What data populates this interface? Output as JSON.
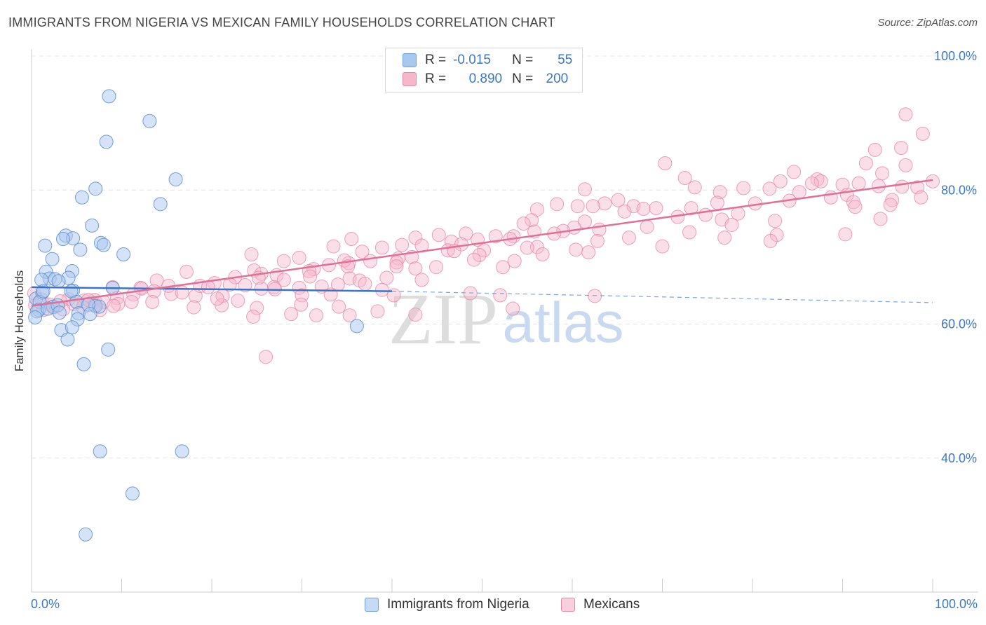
{
  "title": "IMMIGRANTS FROM NIGERIA VS MEXICAN FAMILY HOUSEHOLDS CORRELATION CHART",
  "source": "Source: ZipAtlas.com",
  "watermark": {
    "zip": "ZIP",
    "atlas": "atlas"
  },
  "legend": {
    "r_label": "R =",
    "n_label": "N =",
    "rows": [
      {
        "r": "-0.015",
        "n": "55",
        "color": "#a9c8ef",
        "border": "#6f9fd8"
      },
      {
        "r": "0.890",
        "n": "200",
        "color": "#f6b7cb",
        "border": "#e48aa8"
      }
    ]
  },
  "series_labels": {
    "nigeria": "Immigrants from Nigeria",
    "mexicans": "Mexicans"
  },
  "chart_data": {
    "type": "scatter",
    "title": "IMMIGRANTS FROM NIGERIA VS MEXICAN FAMILY HOUSEHOLDS CORRELATION CHART",
    "xlabel": "",
    "ylabel": "Family Households",
    "xlim": [
      0,
      100
    ],
    "ylim": [
      20,
      100
    ],
    "x_tick_labels": [
      "0.0%",
      "100.0%"
    ],
    "y_ticks": [
      40,
      60,
      80,
      100
    ],
    "y_tick_labels": [
      "40.0%",
      "60.0%",
      "80.0%",
      "100.0%"
    ],
    "grid": true,
    "series": [
      {
        "name": "Immigrants from Nigeria",
        "color": "#6f9fd8",
        "fill": "#a9c8ef",
        "trend": {
          "x0": 0,
          "y0": 65.5,
          "x1": 40,
          "y1": 64.9,
          "dashed_to_x": 100,
          "dashed_to_y": 63.2
        },
        "points": [
          [
            8.6,
            94.0
          ],
          [
            13.1,
            90.3
          ],
          [
            8.3,
            87.2
          ],
          [
            16.0,
            81.6
          ],
          [
            7.1,
            80.2
          ],
          [
            5.6,
            78.9
          ],
          [
            14.3,
            77.9
          ],
          [
            6.7,
            74.7
          ],
          [
            3.8,
            73.2
          ],
          [
            4.6,
            72.8
          ],
          [
            3.5,
            72.7
          ],
          [
            1.5,
            71.7
          ],
          [
            7.7,
            72.1
          ],
          [
            8.0,
            71.8
          ],
          [
            5.4,
            71.1
          ],
          [
            10.2,
            70.4
          ],
          [
            2.3,
            69.7
          ],
          [
            1.6,
            67.8
          ],
          [
            4.5,
            67.9
          ],
          [
            4.1,
            66.9
          ],
          [
            2.0,
            66.8
          ],
          [
            1.1,
            66.6
          ],
          [
            2.6,
            66.7
          ],
          [
            3.0,
            66.4
          ],
          [
            4.6,
            65.0
          ],
          [
            4.4,
            64.9
          ],
          [
            0.5,
            63.8
          ],
          [
            1.2,
            64.7
          ],
          [
            0.9,
            63.3
          ],
          [
            5.0,
            63.3
          ],
          [
            7.1,
            62.7
          ],
          [
            7.5,
            62.6
          ],
          [
            6.3,
            62.9
          ],
          [
            2.4,
            62.6
          ],
          [
            0.8,
            62.1
          ],
          [
            0.6,
            61.9
          ],
          [
            1.8,
            62.3
          ],
          [
            2.9,
            62.8
          ],
          [
            3.1,
            61.7
          ],
          [
            5.2,
            61.6
          ],
          [
            6.5,
            61.5
          ],
          [
            0.4,
            61.0
          ],
          [
            5.1,
            60.7
          ],
          [
            3.3,
            59.1
          ],
          [
            4.5,
            59.5
          ],
          [
            36.1,
            59.7
          ],
          [
            4.0,
            57.7
          ],
          [
            8.5,
            56.2
          ],
          [
            5.8,
            54.0
          ],
          [
            7.6,
            41.0
          ],
          [
            16.7,
            41.0
          ],
          [
            11.2,
            34.7
          ],
          [
            6.0,
            28.6
          ],
          [
            9.0,
            65.4
          ],
          [
            1.3,
            64.9
          ]
        ]
      },
      {
        "name": "Mexicans",
        "color": "#e07098",
        "fill": "#f6b7cb",
        "trend": {
          "x0": 0,
          "y0": 62.7,
          "x1": 100,
          "y1": 81.5
        },
        "points": [
          [
            97.0,
            91.3
          ],
          [
            98.9,
            88.4
          ],
          [
            93.6,
            86.0
          ],
          [
            96.5,
            86.3
          ],
          [
            92.6,
            84.0
          ],
          [
            70.3,
            84.0
          ],
          [
            97.0,
            83.7
          ],
          [
            84.6,
            82.7
          ],
          [
            94.4,
            82.5
          ],
          [
            72.5,
            81.8
          ],
          [
            87.2,
            81.6
          ],
          [
            87.6,
            81.3
          ],
          [
            100.0,
            81.3
          ],
          [
            91.8,
            81.0
          ],
          [
            73.6,
            80.4
          ],
          [
            90.0,
            80.8
          ],
          [
            94.0,
            80.6
          ],
          [
            86.6,
            81.0
          ],
          [
            81.9,
            80.2
          ],
          [
            83.1,
            81.3
          ],
          [
            96.6,
            80.5
          ],
          [
            98.3,
            80.4
          ],
          [
            61.4,
            80.1
          ],
          [
            79.0,
            80.3
          ],
          [
            85.2,
            79.7
          ],
          [
            76.4,
            79.7
          ],
          [
            90.5,
            79.3
          ],
          [
            88.7,
            78.9
          ],
          [
            98.7,
            78.9
          ],
          [
            65.1,
            78.5
          ],
          [
            84.1,
            78.4
          ],
          [
            95.5,
            78.5
          ],
          [
            80.3,
            78.0
          ],
          [
            76.1,
            78.1
          ],
          [
            91.2,
            78.2
          ],
          [
            66.8,
            77.6
          ],
          [
            69.3,
            77.3
          ],
          [
            73.2,
            77.3
          ],
          [
            95.3,
            77.8
          ],
          [
            91.4,
            77.5
          ],
          [
            56.1,
            77.1
          ],
          [
            63.6,
            78.0
          ],
          [
            58.3,
            77.9
          ],
          [
            60.6,
            77.6
          ],
          [
            65.8,
            76.8
          ],
          [
            67.9,
            77.2
          ],
          [
            62.3,
            77.6
          ],
          [
            78.4,
            76.5
          ],
          [
            82.5,
            75.4
          ],
          [
            61.4,
            75.3
          ],
          [
            71.7,
            76.0
          ],
          [
            74.8,
            76.3
          ],
          [
            76.6,
            75.6
          ],
          [
            94.2,
            75.7
          ],
          [
            55.5,
            75.5
          ],
          [
            54.6,
            75.0
          ],
          [
            60.2,
            74.4
          ],
          [
            63.0,
            74.1
          ],
          [
            68.3,
            74.5
          ],
          [
            77.7,
            74.8
          ],
          [
            59.0,
            73.9
          ],
          [
            58.0,
            73.5
          ],
          [
            53.5,
            73.1
          ],
          [
            48.2,
            73.5
          ],
          [
            45.2,
            73.3
          ],
          [
            51.5,
            73.1
          ],
          [
            55.8,
            73.8
          ],
          [
            73.0,
            73.7
          ],
          [
            66.3,
            72.9
          ],
          [
            82.7,
            73.3
          ],
          [
            82.0,
            72.4
          ],
          [
            90.3,
            73.4
          ],
          [
            76.9,
            72.9
          ],
          [
            35.5,
            72.7
          ],
          [
            42.6,
            72.9
          ],
          [
            53.1,
            72.7
          ],
          [
            62.8,
            72.4
          ],
          [
            49.5,
            72.6
          ],
          [
            46.6,
            72.3
          ],
          [
            43.3,
            71.7
          ],
          [
            47.7,
            71.9
          ],
          [
            41.1,
            71.8
          ],
          [
            33.5,
            71.6
          ],
          [
            38.9,
            71.4
          ],
          [
            56.1,
            71.5
          ],
          [
            60.4,
            71.1
          ],
          [
            70.0,
            71.6
          ],
          [
            61.8,
            70.7
          ],
          [
            50.2,
            71.0
          ],
          [
            36.7,
            70.8
          ],
          [
            46.2,
            71.0
          ],
          [
            55.0,
            71.4
          ],
          [
            46.9,
            70.9
          ],
          [
            49.7,
            70.3
          ],
          [
            42.2,
            70.0
          ],
          [
            40.7,
            69.8
          ],
          [
            53.6,
            69.4
          ],
          [
            24.4,
            70.4
          ],
          [
            35.2,
            69.1
          ],
          [
            40.5,
            69.2
          ],
          [
            29.7,
            69.9
          ],
          [
            34.7,
            69.5
          ],
          [
            37.6,
            69.4
          ],
          [
            40.5,
            68.6
          ],
          [
            33.0,
            68.8
          ],
          [
            52.3,
            68.5
          ],
          [
            56.7,
            70.4
          ],
          [
            44.9,
            68.5
          ],
          [
            49.1,
            69.6
          ],
          [
            35.1,
            68.6
          ],
          [
            42.6,
            68.3
          ],
          [
            28.0,
            69.4
          ],
          [
            31.3,
            68.2
          ],
          [
            24.7,
            68.0
          ],
          [
            30.8,
            67.9
          ],
          [
            25.5,
            67.5
          ],
          [
            27.2,
            67.3
          ],
          [
            35.3,
            66.8
          ],
          [
            30.9,
            67.1
          ],
          [
            17.2,
            67.8
          ],
          [
            22.6,
            67.0
          ],
          [
            25.2,
            66.9
          ],
          [
            28.0,
            66.6
          ],
          [
            36.4,
            66.5
          ],
          [
            39.4,
            66.9
          ],
          [
            43.3,
            66.6
          ],
          [
            13.9,
            66.5
          ],
          [
            20.3,
            66.1
          ],
          [
            23.7,
            65.8
          ],
          [
            26.9,
            65.5
          ],
          [
            29.7,
            65.4
          ],
          [
            32.2,
            65.6
          ],
          [
            34.0,
            65.9
          ],
          [
            37.0,
            66.0
          ],
          [
            38.9,
            65.1
          ],
          [
            12.1,
            65.4
          ],
          [
            15.2,
            65.7
          ],
          [
            18.7,
            65.7
          ],
          [
            19.6,
            65.5
          ],
          [
            22.0,
            65.9
          ],
          [
            25.5,
            65.3
          ],
          [
            27.0,
            65.2
          ],
          [
            30.0,
            64.3
          ],
          [
            33.2,
            64.4
          ],
          [
            40.2,
            64.3
          ],
          [
            48.7,
            64.6
          ],
          [
            52.0,
            64.3
          ],
          [
            62.5,
            64.2
          ],
          [
            9.0,
            65.5
          ],
          [
            12.2,
            65.3
          ],
          [
            15.5,
            64.5
          ],
          [
            18.2,
            64.2
          ],
          [
            21.2,
            64.2
          ],
          [
            11.3,
            64.4
          ],
          [
            13.6,
            64.9
          ],
          [
            9.5,
            63.9
          ],
          [
            7.0,
            63.6
          ],
          [
            5.8,
            63.5
          ],
          [
            4.1,
            63.7
          ],
          [
            6.3,
            63.6
          ],
          [
            8.0,
            63.3
          ],
          [
            3.2,
            63.4
          ],
          [
            2.0,
            62.9
          ],
          [
            4.7,
            63.0
          ],
          [
            7.0,
            62.8
          ],
          [
            9.6,
            63.0
          ],
          [
            0.3,
            64.6
          ],
          [
            1.1,
            63.7
          ],
          [
            2.4,
            62.5
          ],
          [
            3.5,
            62.2
          ],
          [
            5.7,
            62.5
          ],
          [
            7.6,
            62.1
          ],
          [
            0.4,
            62.8
          ],
          [
            1.3,
            62.1
          ],
          [
            21.1,
            62.8
          ],
          [
            25.0,
            62.4
          ],
          [
            29.9,
            62.9
          ],
          [
            34.1,
            62.6
          ],
          [
            38.4,
            61.9
          ],
          [
            42.6,
            61.4
          ],
          [
            24.6,
            61.1
          ],
          [
            28.8,
            61.5
          ],
          [
            31.6,
            61.3
          ],
          [
            35.3,
            61.3
          ],
          [
            53.4,
            62.3
          ],
          [
            9.1,
            62.7
          ],
          [
            13.4,
            63.3
          ],
          [
            20.6,
            63.8
          ],
          [
            22.9,
            63.5
          ],
          [
            16.7,
            64.7
          ],
          [
            26.0,
            55.1
          ],
          [
            18.0,
            62.5
          ],
          [
            11.1,
            63.3
          ]
        ]
      }
    ]
  }
}
